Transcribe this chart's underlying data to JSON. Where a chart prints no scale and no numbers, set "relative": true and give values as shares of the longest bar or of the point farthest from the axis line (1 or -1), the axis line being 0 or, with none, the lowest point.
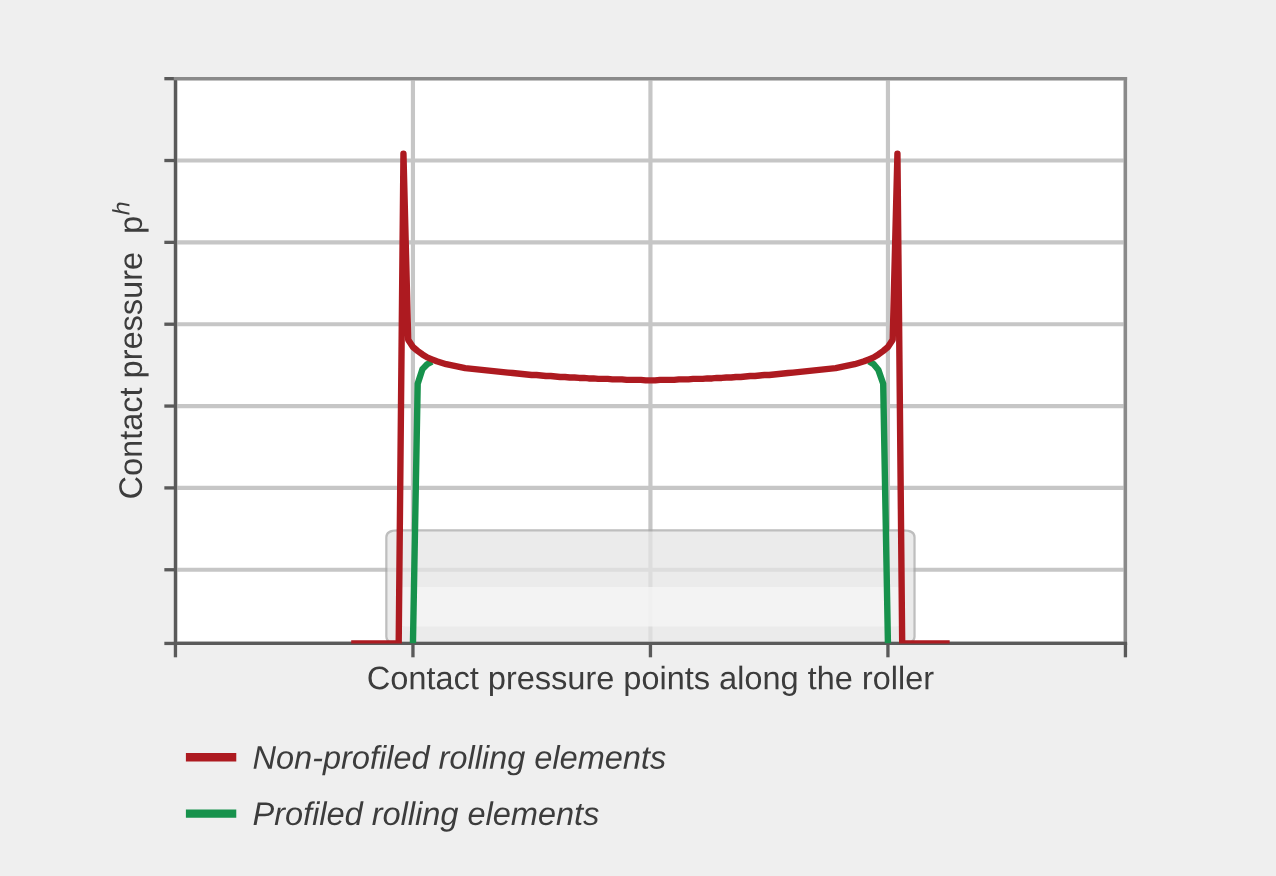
{
  "chart_data": {
    "type": "line",
    "relative": true,
    "xlabel": "Contact pressure points along the roller",
    "ylabel": "Contact pressure  p$^{h}$",
    "tick_labels": false,
    "grid": true,
    "legend": "bottom left",
    "categories": [
      null,
      null,
      null,
      null,
      null,
      null,
      null,
      null,
      null,
      null,
      null,
      null,
      null,
      null,
      null,
      null,
      null,
      null,
      null,
      null,
      null,
      null,
      null,
      null,
      null,
      null,
      null,
      null,
      null,
      null,
      null,
      null,
      null,
      null,
      null,
      null,
      null,
      null,
      null,
      null,
      null,
      null,
      null,
      null,
      null,
      null,
      null,
      null,
      null,
      null,
      null,
      null,
      null,
      null,
      null,
      null,
      null,
      null,
      null,
      null,
      null,
      null,
      null,
      null,
      null,
      null,
      null,
      null,
      null,
      null,
      null,
      null,
      null,
      null,
      null,
      null,
      null,
      null,
      null,
      null,
      null,
      null,
      null,
      null,
      null,
      null,
      null,
      null,
      null,
      null,
      null,
      null,
      null,
      null,
      null,
      null,
      null,
      null,
      null,
      null,
      null,
      null,
      null,
      null,
      null,
      null,
      null,
      null,
      null,
      null,
      null,
      null,
      null,
      null,
      null,
      null,
      null,
      null,
      null,
      null,
      null,
      null,
      null,
      null,
      null,
      null,
      null,
      null,
      null,
      null,
      null,
      null,
      null,
      null,
      null,
      null,
      null,
      null,
      null,
      null,
      null,
      null,
      null,
      null,
      null,
      null,
      null,
      null,
      null,
      null,
      null,
      null,
      null,
      null,
      null,
      null,
      null,
      null,
      null,
      null,
      null,
      null,
      null,
      null,
      null,
      null,
      null,
      null,
      null,
      null,
      null,
      null,
      null,
      null,
      null,
      null,
      null,
      null,
      null,
      null,
      null,
      null,
      null,
      null,
      null,
      null,
      null,
      null,
      null,
      null,
      null,
      null,
      null,
      null,
      null,
      null,
      null,
      null,
      null,
      null,
      null
    ],
    "series": [
      {
        "name": "Non-profiled rolling elements",
        "color": "#ad1a20",
        "values": [
          null,
          null,
          null,
          null,
          null,
          null,
          null,
          null,
          null,
          null,
          null,
          null,
          null,
          null,
          null,
          null,
          null,
          null,
          null,
          null,
          null,
          null,
          null,
          null,
          null,
          null,
          null,
          null,
          null,
          null,
          null,
          null,
          null,
          null,
          null,
          null,
          null,
          0,
          0,
          0,
          0,
          0,
          0,
          0,
          0,
          0,
          0,
          0,
          1.0,
          0.62,
          0.605,
          0.597,
          0.59,
          0.584,
          0.58,
          0.576,
          0.573,
          0.57,
          0.568,
          0.566,
          0.564,
          0.562,
          0.561,
          0.56,
          0.559,
          0.558,
          0.557,
          0.556,
          0.555,
          0.554,
          0.553,
          0.552,
          0.551,
          0.55,
          0.549,
          0.548,
          0.548,
          0.547,
          0.546,
          0.546,
          0.545,
          0.544,
          0.544,
          0.543,
          0.543,
          0.542,
          0.542,
          0.541,
          0.541,
          0.54,
          0.54,
          0.54,
          0.539,
          0.539,
          0.539,
          0.538,
          0.538,
          0.538,
          0.538,
          0.537,
          0.537,
          0.537,
          0.538,
          0.538,
          0.538,
          0.538,
          0.539,
          0.539,
          0.539,
          0.54,
          0.54,
          0.54,
          0.541,
          0.541,
          0.542,
          0.542,
          0.543,
          0.543,
          0.544,
          0.544,
          0.545,
          0.546,
          0.546,
          0.547,
          0.548,
          0.548,
          0.549,
          0.55,
          0.551,
          0.552,
          0.553,
          0.554,
          0.555,
          0.556,
          0.557,
          0.558,
          0.559,
          0.56,
          0.561,
          0.562,
          0.564,
          0.566,
          0.568,
          0.57,
          0.573,
          0.576,
          0.58,
          0.584,
          0.59,
          0.597,
          0.605,
          0.62,
          1.0,
          0,
          0,
          0,
          0,
          0,
          0,
          0,
          0,
          0,
          0,
          0,
          null,
          null,
          null,
          null,
          null,
          null,
          null,
          null,
          null,
          null,
          null,
          null,
          null,
          null,
          null,
          null,
          null,
          null,
          null,
          null,
          null,
          null,
          null,
          null,
          null,
          null,
          null,
          null,
          null,
          null,
          null,
          null,
          null,
          null,
          null,
          null,
          null
        ]
      },
      {
        "name": "Profiled rolling elements",
        "color": "#17924c",
        "values": [
          null,
          null,
          null,
          null,
          null,
          null,
          null,
          null,
          null,
          null,
          null,
          null,
          null,
          null,
          null,
          null,
          null,
          null,
          null,
          null,
          null,
          null,
          null,
          null,
          null,
          null,
          null,
          null,
          null,
          null,
          null,
          null,
          null,
          null,
          null,
          null,
          null,
          null,
          null,
          null,
          null,
          null,
          null,
          null,
          null,
          null,
          null,
          null,
          null,
          null,
          0,
          0.53,
          0.56,
          0.57,
          0.575,
          null,
          null,
          null,
          null,
          null,
          null,
          null,
          null,
          null,
          null,
          null,
          null,
          null,
          null,
          null,
          null,
          null,
          null,
          null,
          null,
          null,
          null,
          null,
          null,
          null,
          null,
          null,
          null,
          null,
          null,
          null,
          null,
          null,
          null,
          null,
          null,
          null,
          null,
          null,
          null,
          null,
          null,
          null,
          null,
          null,
          null,
          null,
          null,
          null,
          null,
          null,
          null,
          null,
          null,
          null,
          null,
          null,
          null,
          null,
          null,
          null,
          null,
          null,
          null,
          null,
          null,
          null,
          null,
          null,
          null,
          null,
          null,
          null,
          null,
          null,
          null,
          null,
          null,
          null,
          null,
          null,
          null,
          null,
          null,
          null,
          null,
          null,
          null,
          null,
          null,
          null,
          0.576,
          0.57,
          0.558,
          0.53,
          0,
          null,
          null,
          null,
          null,
          null,
          null,
          null,
          null,
          null,
          null,
          null,
          null,
          null,
          null,
          null,
          null,
          null,
          null,
          null,
          null,
          null,
          null,
          null,
          null,
          null,
          null,
          null,
          null,
          null,
          null,
          null,
          null,
          null,
          null,
          null,
          null,
          null,
          null,
          null,
          null,
          null,
          null,
          null,
          null,
          null,
          null,
          null,
          null,
          null,
          null
        ]
      }
    ]
  }
}
